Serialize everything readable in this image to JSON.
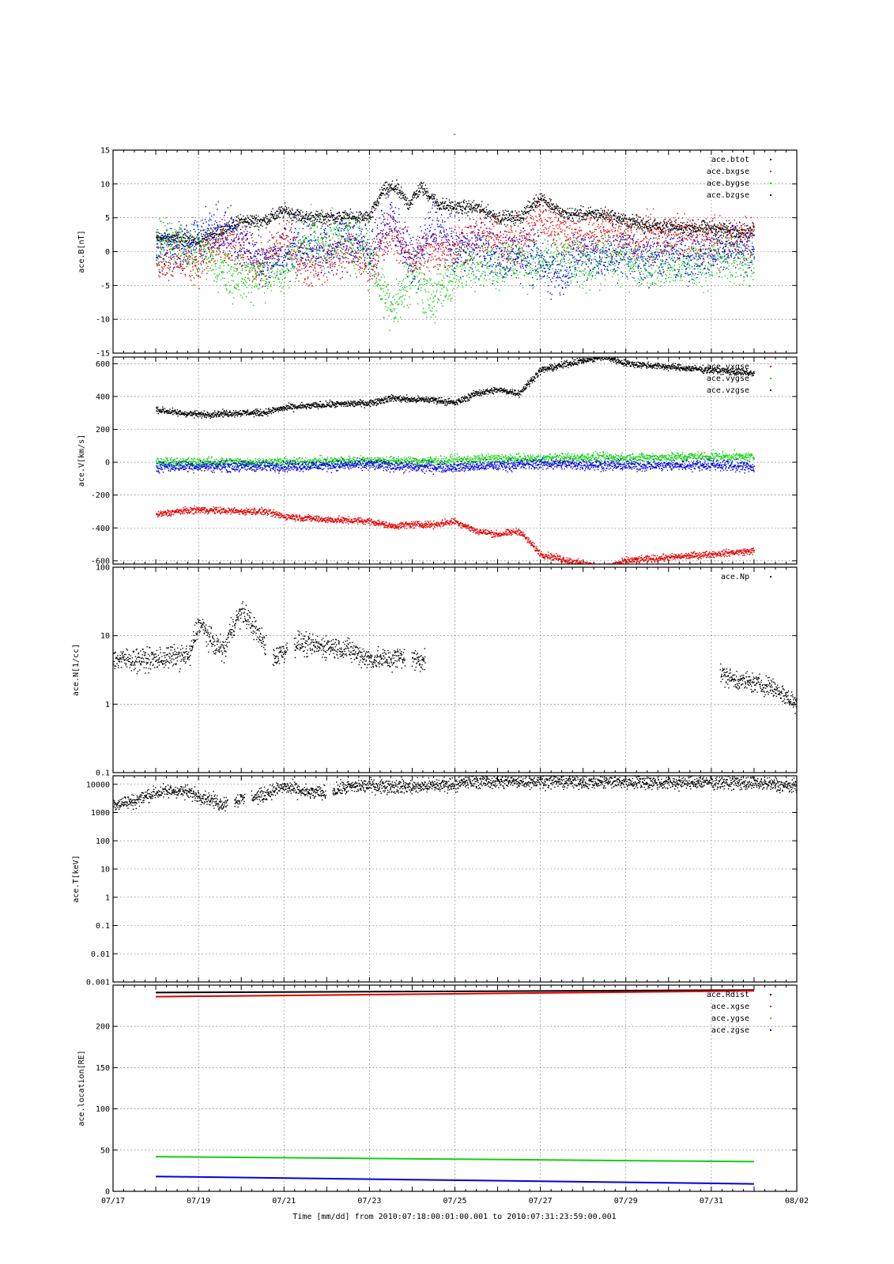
{
  "figure": {
    "title": "-",
    "xaxis": {
      "label": "Time [mm/dd]  from 2010:07:18:00:01:00.001  to  2010:07:31:23:59:00.001",
      "range": [
        "07/17",
        "08/02"
      ],
      "tick_labels": [
        "07/17",
        "07/19",
        "07/21",
        "07/23",
        "07/25",
        "07/27",
        "07/29",
        "07/31",
        "08/02"
      ]
    }
  },
  "colors": {
    "black": "#000000",
    "red": "#e00000",
    "green": "#10d010",
    "blue": "#0000e0"
  },
  "chart_data": [
    {
      "type": "scatter",
      "ylabel": "ace.B[nT]",
      "ylim": [
        -15,
        15
      ],
      "scale": "linear",
      "yticks": [
        -15,
        -10,
        -5,
        0,
        5,
        10,
        15
      ],
      "ytick_labels": [
        "-15",
        "-10",
        "-5",
        "0",
        "5",
        "10",
        "15"
      ],
      "grid": true,
      "legend": "top-right",
      "series": [
        {
          "name": "ace.btot",
          "color": "black",
          "noise": 0.5,
          "x": [
            18.0,
            18.5,
            19.0,
            19.5,
            20.0,
            20.5,
            21.0,
            21.5,
            22.0,
            22.5,
            23.0,
            23.3,
            23.6,
            23.9,
            24.2,
            24.6,
            25.0,
            25.5,
            26.0,
            26.5,
            27.0,
            27.5,
            28.0,
            28.5,
            29.0,
            29.5,
            30.0,
            30.5,
            31.0,
            31.5,
            32.0
          ],
          "y": [
            2,
            2,
            1.5,
            3,
            4.5,
            4.5,
            6,
            5,
            5,
            5,
            5,
            9,
            9.5,
            7,
            9.5,
            7,
            6.5,
            6.5,
            5,
            5,
            8,
            5.5,
            5.5,
            5.5,
            4.5,
            4,
            3.5,
            3.5,
            3.5,
            3,
            3
          ]
        },
        {
          "name": "ace.bxgse",
          "color": "red",
          "noise": 1.6,
          "x": [
            18.0,
            18.5,
            19.0,
            19.5,
            20.0,
            20.5,
            21.0,
            21.5,
            22.0,
            22.5,
            23.0,
            23.5,
            24.0,
            24.5,
            25.0,
            25.5,
            26.0,
            26.5,
            27.0,
            27.5,
            28.0,
            28.5,
            29.0,
            29.5,
            30.0,
            30.5,
            31.0,
            31.5,
            32.0
          ],
          "y": [
            -1,
            -1,
            -1.5,
            1,
            0,
            -2,
            2,
            -2,
            -1,
            0,
            -2,
            3,
            -1,
            0,
            1,
            2,
            2,
            1,
            5,
            3,
            2,
            3,
            2,
            2,
            2,
            2,
            1.5,
            2,
            2
          ]
        },
        {
          "name": "ace.bygse",
          "color": "green",
          "noise": 1.8,
          "x": [
            18.0,
            18.5,
            19.0,
            19.5,
            20.0,
            20.5,
            21.0,
            21.5,
            22.0,
            22.5,
            23.0,
            23.3,
            23.6,
            24.0,
            24.5,
            25.0,
            25.5,
            26.0,
            26.5,
            27.0,
            27.5,
            28.0,
            28.5,
            29.0,
            29.5,
            30.0,
            30.5,
            31.0,
            31.5,
            32.0
          ],
          "y": [
            1,
            1.5,
            0,
            -2,
            -4,
            -3,
            -3,
            2,
            1,
            2,
            0,
            -6,
            -8,
            -3,
            -7,
            -3,
            -1,
            -2,
            -1,
            -2,
            -1,
            -2,
            -1,
            -1,
            -2,
            -2,
            -2,
            -1,
            -1,
            -2
          ]
        },
        {
          "name": "ace.bzgse",
          "color": "blue",
          "noise": 1.8,
          "x": [
            18.0,
            18.5,
            19.0,
            19.5,
            20.0,
            20.5,
            21.0,
            21.5,
            22.0,
            22.5,
            23.0,
            23.5,
            24.0,
            24.5,
            25.0,
            25.5,
            26.0,
            26.5,
            27.0,
            27.5,
            28.0,
            28.5,
            29.0,
            29.5,
            30.0,
            30.5,
            31.0,
            31.5,
            32.0
          ],
          "y": [
            0,
            1,
            2,
            3,
            2,
            -2,
            0,
            1,
            0,
            2,
            0,
            5,
            -2,
            4,
            0,
            1,
            -1,
            0,
            -2,
            -3,
            0,
            -1,
            0,
            -1,
            0,
            -1,
            0,
            1,
            0
          ]
        }
      ]
    },
    {
      "type": "scatter",
      "ylabel": "ace.V[km/s]",
      "ylim": [
        -620,
        640
      ],
      "scale": "linear",
      "yticks": [
        -600,
        -400,
        -200,
        0,
        200,
        400,
        600
      ],
      "ytick_labels": [
        "-600",
        "-400",
        "-200",
        "0",
        "200",
        "400",
        "600"
      ],
      "grid": true,
      "legend": "top-right",
      "series": [
        {
          "name": "",
          "color": "black",
          "noise": 10,
          "x": [
            18.0,
            18.5,
            19.0,
            19.5,
            20.0,
            20.5,
            21.0,
            21.5,
            22.0,
            22.5,
            23.0,
            23.5,
            24.0,
            24.5,
            25.0,
            25.5,
            26.0,
            26.5,
            27.0,
            27.5,
            28.0,
            28.5,
            29.0,
            29.5,
            30.0,
            30.5,
            31.0,
            31.5,
            32.0
          ],
          "y": [
            320,
            300,
            290,
            295,
            300,
            300,
            330,
            340,
            350,
            355,
            360,
            390,
            380,
            380,
            360,
            420,
            440,
            420,
            560,
            590,
            620,
            640,
            600,
            590,
            580,
            570,
            560,
            550,
            540
          ]
        },
        {
          "name": "ace.vxgse",
          "color": "red",
          "noise": 10,
          "x": [
            18.0,
            18.5,
            19.0,
            19.5,
            20.0,
            20.5,
            21.0,
            21.5,
            22.0,
            22.5,
            23.0,
            23.5,
            24.0,
            24.5,
            25.0,
            25.5,
            26.0,
            26.5,
            27.0,
            27.5,
            28.0,
            28.5,
            29.0,
            29.5,
            30.0,
            30.5,
            31.0,
            31.5,
            32.0
          ],
          "y": [
            -320,
            -300,
            -290,
            -295,
            -300,
            -300,
            -330,
            -340,
            -350,
            -355,
            -360,
            -390,
            -380,
            -380,
            -360,
            -420,
            -440,
            -420,
            -560,
            -590,
            -620,
            -640,
            -600,
            -590,
            -580,
            -570,
            -560,
            -550,
            -540
          ]
        },
        {
          "name": "ace.vygse",
          "color": "green",
          "noise": 14,
          "x": [
            18.0,
            19.0,
            20.0,
            21.0,
            22.0,
            23.0,
            24.0,
            25.0,
            26.0,
            27.0,
            28.0,
            29.0,
            30.0,
            31.0,
            32.0
          ],
          "y": [
            0,
            0,
            0,
            0,
            5,
            10,
            5,
            10,
            20,
            20,
            30,
            25,
            30,
            35,
            30
          ]
        },
        {
          "name": "ace.vzgse",
          "color": "blue",
          "noise": 16,
          "x": [
            18.0,
            19.0,
            20.0,
            21.0,
            22.0,
            23.0,
            24.0,
            25.0,
            26.0,
            27.0,
            28.0,
            29.0,
            30.0,
            31.0,
            32.0
          ],
          "y": [
            -25,
            -25,
            -25,
            -25,
            -20,
            -15,
            -30,
            -30,
            -20,
            -10,
            -15,
            -20,
            -20,
            -15,
            -30
          ]
        }
      ]
    },
    {
      "type": "scatter",
      "ylabel": "ace.N[1/cc]",
      "ylim": [
        0.1,
        100
      ],
      "scale": "log",
      "yticks": [
        0.1,
        1,
        10,
        100
      ],
      "ytick_labels": [
        "0.1",
        "1",
        "10",
        "100"
      ],
      "grid": true,
      "legend": "top-right",
      "series": [
        {
          "name": "ace.Np",
          "color": "black",
          "noise": 0.08,
          "x": [
            17.0,
            17.5,
            18.0,
            18.5,
            18.8,
            19.0,
            19.3,
            19.6,
            20.0,
            20.4,
            20.7,
            21.0,
            21.3,
            21.6,
            22.0,
            22.4,
            22.7,
            23.0,
            23.5,
            23.8,
            24.0,
            24.3
          ],
          "y": [
            4.5,
            4.5,
            4.5,
            5,
            5,
            15,
            8,
            6,
            22,
            10,
            4.5,
            6,
            8,
            7,
            7,
            6.5,
            5.5,
            4.5,
            4.5,
            5,
            4.5,
            4.5
          ],
          "gaps": [
            20.65,
            21.15,
            23.9
          ]
        },
        {
          "name": "",
          "color": "black",
          "noise": 0.07,
          "x": [
            31.2,
            31.5,
            32.0,
            32.4,
            32.8,
            33.0
          ],
          "y": [
            2.8,
            2.3,
            2.0,
            1.8,
            1.2,
            1.0
          ]
        }
      ]
    },
    {
      "type": "scatter",
      "ylabel": "ace.T[keV]",
      "ylim": [
        0.001,
        20000
      ],
      "scale": "log",
      "yticks": [
        0.001,
        0.01,
        0.1,
        1,
        10,
        100,
        1000,
        10000
      ],
      "ytick_labels": [
        "0.001",
        "0.01",
        "0.1",
        "1",
        "10",
        "100",
        "1000",
        "10000"
      ],
      "grid": true,
      "legend": "none",
      "series": [
        {
          "name": "",
          "color": "black",
          "noise": 0.12,
          "x": [
            17.0,
            17.5,
            18.0,
            18.5,
            19.0,
            19.5,
            20.0,
            20.5,
            21.0,
            21.5,
            22.0,
            22.5,
            23.0,
            24.0,
            25.0,
            25.5,
            26.0,
            27.0,
            28.0,
            29.0,
            30.0,
            31.0,
            32.0,
            33.0
          ],
          "y": [
            2000,
            2500,
            5000,
            6000,
            4000,
            2000,
            3000,
            4000,
            8000,
            5000,
            5000,
            8000,
            9000,
            8000,
            10000,
            13000,
            12000,
            13000,
            12000,
            12000,
            11000,
            12000,
            11000,
            8000
          ],
          "gaps": [
            19.75,
            20.15,
            22.05
          ]
        }
      ]
    },
    {
      "type": "scatter",
      "ylabel": "ace.location[RE]",
      "ylim": [
        0,
        250
      ],
      "scale": "linear",
      "yticks": [
        0,
        50,
        100,
        150,
        200
      ],
      "ytick_labels": [
        "0",
        "50",
        "100",
        "150",
        "200"
      ],
      "grid": true,
      "legend": "top-right",
      "series": [
        {
          "name": "ace.Rdist",
          "color": "black",
          "noise": 0,
          "x": [
            18.0,
            32.0
          ],
          "y": [
            241,
            244
          ]
        },
        {
          "name": "ace.xgse",
          "color": "red",
          "noise": 0,
          "x": [
            18.0,
            32.0
          ],
          "y": [
            236,
            243
          ]
        },
        {
          "name": "ace.ygse",
          "color": "green",
          "noise": 0,
          "x": [
            18.0,
            32.0
          ],
          "y": [
            42,
            36
          ]
        },
        {
          "name": "ace.zgse",
          "color": "blue",
          "noise": 0,
          "x": [
            18.0,
            32.0
          ],
          "y": [
            18,
            9
          ]
        }
      ]
    }
  ]
}
